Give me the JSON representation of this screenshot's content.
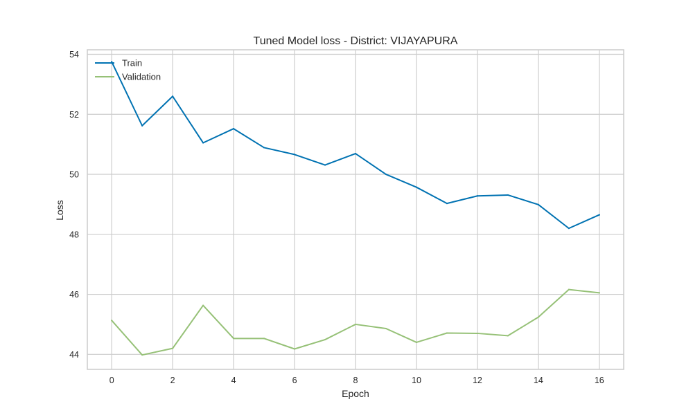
{
  "chart_data": {
    "type": "line",
    "title": "Tuned Model loss - District: VIJAYAPURA",
    "xlabel": "Epoch",
    "ylabel": "Loss",
    "xlim": [
      -0.8,
      16.8
    ],
    "ylim": [
      43.5,
      54.15
    ],
    "xticks": [
      0,
      2,
      4,
      6,
      8,
      10,
      12,
      14,
      16
    ],
    "yticks": [
      44,
      46,
      48,
      50,
      52,
      54
    ],
    "grid": true,
    "legend_position": "top-left",
    "x": [
      0,
      1,
      2,
      3,
      4,
      5,
      6,
      7,
      8,
      9,
      10,
      11,
      12,
      13,
      14,
      15,
      16
    ],
    "series": [
      {
        "name": "Train",
        "color": "#0072b2",
        "values": [
          53.75,
          51.62,
          52.6,
          51.05,
          51.52,
          50.89,
          50.66,
          50.31,
          50.69,
          50.0,
          49.57,
          49.03,
          49.28,
          49.31,
          48.99,
          48.2,
          48.65
        ]
      },
      {
        "name": "Validation",
        "color": "#96c177",
        "values": [
          45.13,
          43.98,
          44.2,
          45.63,
          44.53,
          44.53,
          44.18,
          44.49,
          45.0,
          44.86,
          44.4,
          44.71,
          44.7,
          44.62,
          45.24,
          46.16,
          46.05
        ]
      }
    ]
  }
}
